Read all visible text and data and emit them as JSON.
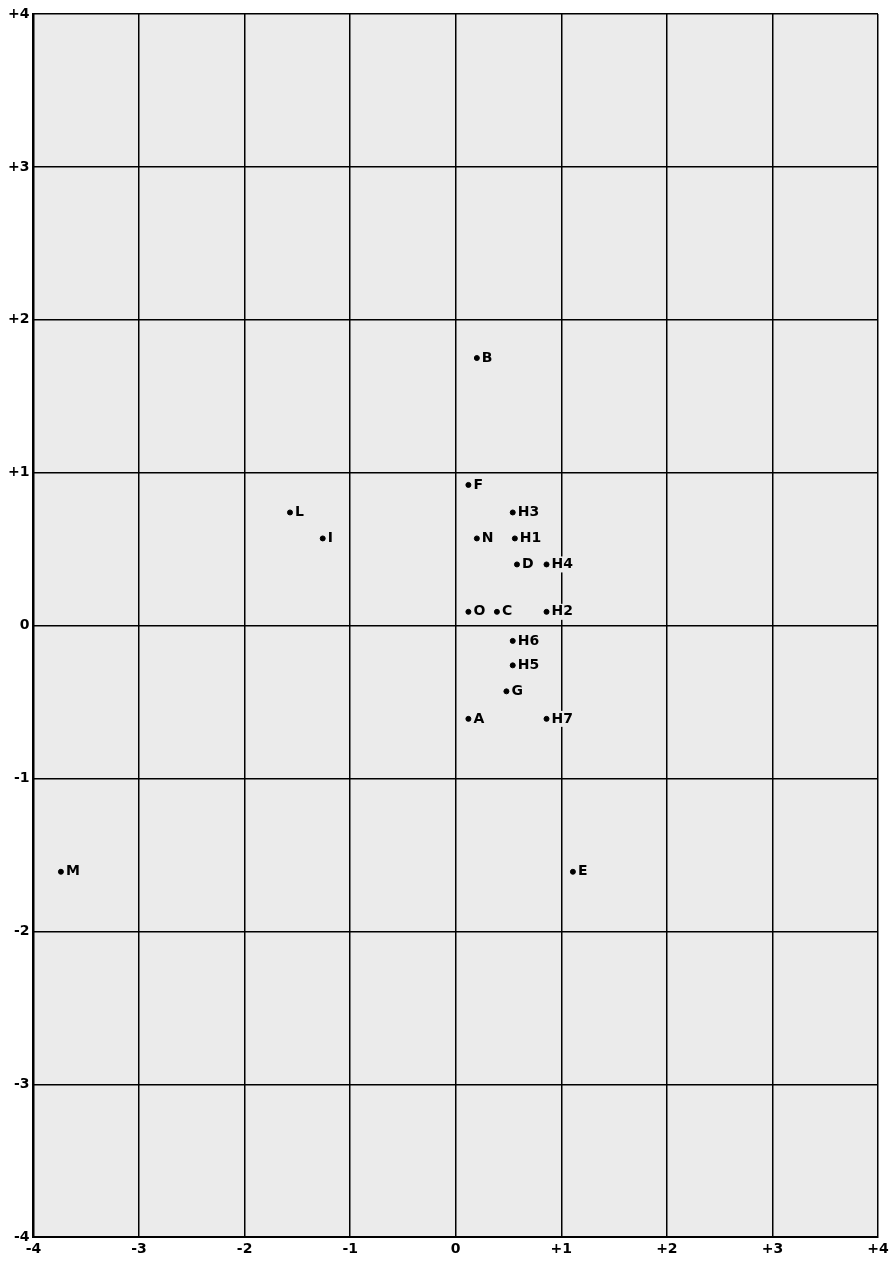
{
  "chart_data": {
    "type": "scatter",
    "marker": "circle",
    "grid": true,
    "legend": false,
    "xlim": [
      -4,
      4
    ],
    "ylim": [
      -4,
      4
    ],
    "xticks": [
      {
        "value": -4,
        "label": "-4"
      },
      {
        "value": -3,
        "label": "-3"
      },
      {
        "value": -2,
        "label": "-2"
      },
      {
        "value": -1,
        "label": "-1"
      },
      {
        "value": 0,
        "label": "0"
      },
      {
        "value": 1,
        "label": "+1"
      },
      {
        "value": 2,
        "label": "+2"
      },
      {
        "value": 3,
        "label": "+3"
      },
      {
        "value": 4,
        "label": "+4"
      }
    ],
    "yticks": [
      {
        "value": -4,
        "label": "-4"
      },
      {
        "value": -3,
        "label": "-3"
      },
      {
        "value": -2,
        "label": "-2"
      },
      {
        "value": -1,
        "label": "-1"
      },
      {
        "value": 0,
        "label": "0"
      },
      {
        "value": 1,
        "label": "+1"
      },
      {
        "value": 2,
        "label": "+2"
      },
      {
        "value": 3,
        "label": "+3"
      },
      {
        "value": 4,
        "label": "+4"
      }
    ],
    "series": [
      {
        "color": "#000000",
        "x": [
          0.2,
          0.12,
          0.54,
          -1.57,
          -1.26,
          0.2,
          0.56,
          0.58,
          0.86,
          0.12,
          0.39,
          0.86,
          0.54,
          0.54,
          0.48,
          0.12,
          0.86,
          1.11,
          -3.74
        ],
        "values": [
          1.75,
          0.92,
          0.74,
          0.74,
          0.57,
          0.57,
          0.57,
          0.4,
          0.4,
          0.09,
          0.09,
          0.09,
          -0.1,
          -0.26,
          -0.43,
          -0.61,
          -0.61,
          -1.61,
          -1.61
        ],
        "value_labels": [
          "B",
          "F",
          "H3",
          "L",
          "I",
          "N",
          "H1",
          "D",
          "H4",
          "O",
          "C",
          "H2",
          "H6",
          "H5",
          "G",
          "A",
          "H7",
          "E",
          "M"
        ]
      }
    ]
  }
}
